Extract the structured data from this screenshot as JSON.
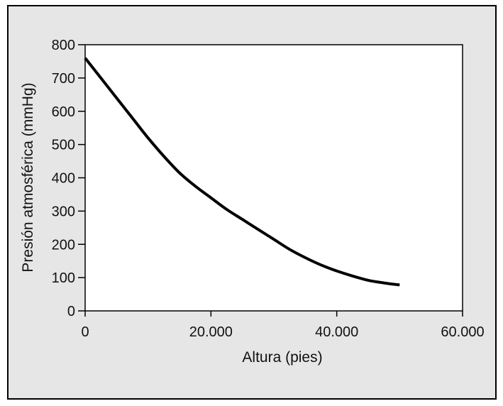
{
  "chart_data": {
    "type": "line",
    "title": "",
    "xlabel": "Altura (pies)",
    "ylabel": "Presión atmosférica (mmHg)",
    "xlim": [
      0,
      60000
    ],
    "ylim": [
      0,
      800
    ],
    "x_ticks": [
      0,
      20000,
      40000,
      60000
    ],
    "x_tick_labels": [
      "0",
      "20.000",
      "40.000",
      "60.000"
    ],
    "y_ticks": [
      0,
      100,
      200,
      300,
      400,
      500,
      600,
      700,
      800
    ],
    "y_tick_labels": [
      "0",
      "100",
      "200",
      "300",
      "400",
      "500",
      "600",
      "700",
      "800"
    ],
    "grid": false,
    "series": [
      {
        "color": "#000000",
        "x": [
          0,
          2500,
          5000,
          7500,
          10000,
          12500,
          15000,
          17500,
          20000,
          22500,
          25000,
          27500,
          30000,
          32500,
          35000,
          37500,
          40000,
          42500,
          45000,
          47500,
          50000
        ],
        "y": [
          760,
          700,
          640,
          580,
          520,
          465,
          415,
          375,
          340,
          305,
          275,
          245,
          215,
          185,
          160,
          138,
          120,
          105,
          92,
          84,
          78
        ]
      }
    ]
  }
}
